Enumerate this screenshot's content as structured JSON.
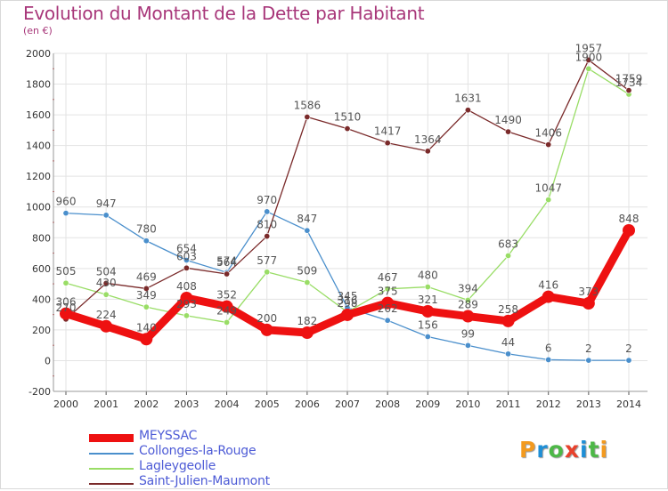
{
  "title": "Evolution du Montant de la Dette par Habitant",
  "unit_label": "(en €)",
  "logo": {
    "text": "Proxiti",
    "letter_colors": [
      "#f39a1f",
      "#1f8fd6",
      "#4db847",
      "#e8412c",
      "#1f8fd6",
      "#4db847",
      "#f39a1f"
    ]
  },
  "chart_data": {
    "type": "line",
    "title": "Evolution du Montant de la Dette par Habitant",
    "ylabel": "(en €)",
    "xlabel": "",
    "x": [
      "2000",
      "2001",
      "2002",
      "2003",
      "2004",
      "2005",
      "2006",
      "2007",
      "2008",
      "2009",
      "2010",
      "2011",
      "2012",
      "2013",
      "2014"
    ],
    "ylim": [
      -200,
      2000
    ],
    "yticks": [
      -200,
      0,
      200,
      400,
      600,
      800,
      1000,
      1200,
      1400,
      1600,
      1800,
      2000
    ],
    "grid": true,
    "legend_position": "bottom-left",
    "series": [
      {
        "name": "MEYSSAC",
        "color": "#ee1111",
        "width": "thick",
        "values": [
          306,
          224,
          140,
          408,
          352,
          200,
          182,
          298,
          375,
          321,
          289,
          258,
          416,
          373,
          848
        ],
        "labels": [
          "306",
          "224",
          "140",
          "408",
          "352",
          "200",
          "182",
          "298",
          "375",
          "321",
          "289",
          "258",
          "416",
          "373",
          "848"
        ]
      },
      {
        "name": "Collonges-la-Rouge",
        "color": "#4a8fcc",
        "width": "thin",
        "values": [
          960,
          947,
          780,
          654,
          574,
          970,
          847,
          345,
          262,
          156,
          99,
          44,
          6,
          2,
          2
        ],
        "labels": [
          "960",
          "947",
          "780",
          "654",
          "574",
          "970",
          "847",
          "345",
          "262",
          "156",
          "99",
          "44",
          "6",
          "2",
          "2"
        ]
      },
      {
        "name": "Lagleygeolle",
        "color": "#99dd66",
        "width": "thin",
        "values": [
          505,
          430,
          349,
          293,
          249,
          577,
          509,
          316,
          467,
          480,
          394,
          683,
          1047,
          1900,
          1734
        ],
        "labels": [
          "505",
          "430",
          "349",
          "293",
          "249",
          "577",
          "509",
          "316",
          "467",
          "480",
          "394",
          "683",
          "1047",
          "1900",
          "1734"
        ]
      },
      {
        "name": "Saint-Julien-Maumont",
        "color": "#7a2a2a",
        "width": "thin",
        "values": [
          270,
          504,
          469,
          603,
          564,
          810,
          1586,
          1510,
          1417,
          1364,
          1631,
          1490,
          1406,
          1957,
          1759
        ],
        "labels": [
          "270",
          "504",
          "469",
          "603",
          "564",
          "810",
          "1586",
          "1510",
          "1417",
          "1364",
          "1631",
          "1490",
          "1406",
          "1957",
          "1759"
        ]
      }
    ]
  }
}
